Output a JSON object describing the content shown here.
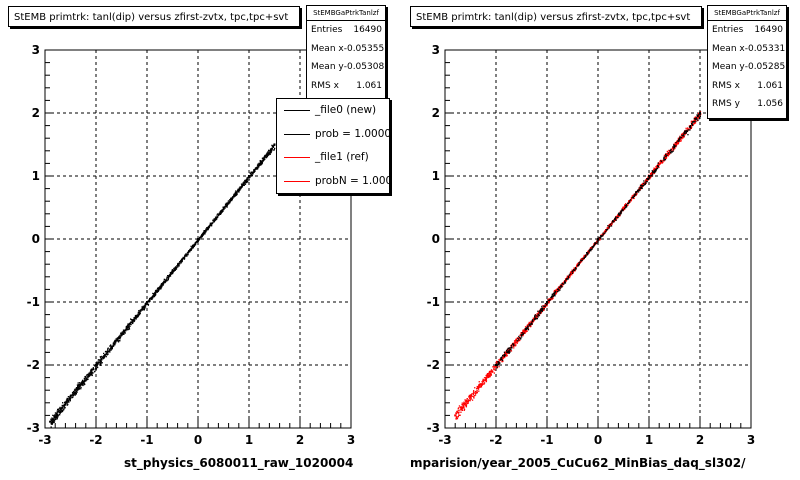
{
  "colors": {
    "reference_marker": "#000000",
    "comparison_marker": "#ff0000",
    "dashed_grid": "#000000"
  },
  "left_pad": {
    "title": "StEMB primtrk: tanl(dip) versus zfirst-zvtx, tpc,tpc+svt",
    "x_title": "st_physics_6080011_raw_1020004",
    "stats": {
      "name": "StEMBGaPtrkTanlzf",
      "rows": [
        {
          "label": "Entries",
          "value": "16490"
        },
        {
          "label": "Mean x",
          "value": "-0.05355"
        },
        {
          "label": "Mean y",
          "value": "-0.05308"
        },
        {
          "label": "RMS x",
          "value": "1.061"
        }
      ]
    },
    "legend": [
      {
        "label": "_file0 (new)",
        "color": "#000000"
      },
      {
        "label": "prob = 1.000000",
        "color": "#000000"
      },
      {
        "label": "_file1 (ref)",
        "color": "#ff0000"
      },
      {
        "label": "probN = 1.000000",
        "color": "#ff0000"
      }
    ]
  },
  "right_pad": {
    "title": "StEMB primtrk: tanl(dip) versus zfirst-zvtx, tpc,tpc+svt",
    "x_title": "mparision/year_2005_CuCu62_MinBias_daq_sl302/",
    "stats": {
      "name": "StEMBGaPtrkTanlzf",
      "rows": [
        {
          "label": "Entries",
          "value": "16490"
        },
        {
          "label": "Mean x",
          "value": "-0.05331"
        },
        {
          "label": "Mean y",
          "value": "-0.05285"
        },
        {
          "label": "RMS x",
          "value": "1.061"
        },
        {
          "label": "RMS y",
          "value": "1.056"
        }
      ]
    }
  },
  "chart_data": [
    {
      "type": "scatter",
      "title": "StEMB primtrk: tanl(dip) versus zfirst-zvtx, tpc,tpc+svt",
      "xlabel": "st_physics_6080011_raw_1020004",
      "ylabel": "",
      "xlim": [
        -3,
        3
      ],
      "ylim": [
        -3,
        3
      ],
      "x_ticks": [
        "-3",
        "-2",
        "-1",
        "0",
        "1",
        "2",
        "3"
      ],
      "y_ticks": [
        "-3",
        "-2",
        "-1",
        "0",
        "1",
        "2",
        "3"
      ],
      "grid": true,
      "legend_position": "top-right",
      "series": [
        {
          "name": "_file0 (new)",
          "color": "#000000",
          "x": [
            -2.9,
            -2.5,
            -2.0,
            -1.5,
            -1.0,
            -0.5,
            0.0,
            0.5,
            1.0,
            1.5
          ],
          "y": [
            -2.9,
            -2.5,
            -2.0,
            -1.5,
            -1.0,
            -0.5,
            0.0,
            0.5,
            1.0,
            1.5
          ]
        }
      ]
    },
    {
      "type": "scatter",
      "title": "StEMB primtrk: tanl(dip) versus zfirst-zvtx, tpc,tpc+svt",
      "xlabel": "mparision/year_2005_CuCu62_MinBias_daq_sl302/",
      "ylabel": "",
      "xlim": [
        -3,
        3
      ],
      "ylim": [
        -3,
        3
      ],
      "x_ticks": [
        "-3",
        "-2",
        "-1",
        "0",
        "1",
        "2",
        "3"
      ],
      "y_ticks": [
        "-3",
        "-2",
        "-1",
        "0",
        "1",
        "2",
        "3"
      ],
      "grid": true,
      "series": [
        {
          "name": "_file1 (ref)",
          "color": "#ff0000",
          "x": [
            -2.8,
            -2.5,
            -2.0,
            -1.5,
            -1.0,
            -0.5,
            0.0,
            0.5,
            1.0,
            1.5,
            2.0
          ],
          "y": [
            -2.8,
            -2.5,
            -2.0,
            -1.5,
            -1.0,
            -0.5,
            0.0,
            0.5,
            1.0,
            1.5,
            2.0
          ]
        },
        {
          "name": "_file0 (new)",
          "color": "#000000",
          "x": [
            -2.0,
            -1.0,
            0.0,
            1.0,
            2.0
          ],
          "y": [
            -2.0,
            -1.0,
            0.0,
            1.0,
            2.0
          ]
        }
      ]
    }
  ]
}
